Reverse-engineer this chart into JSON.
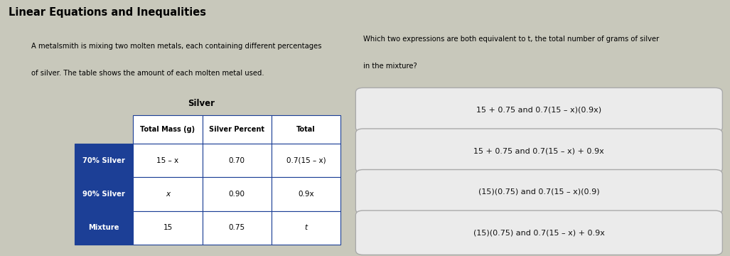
{
  "title": "Linear Equations and Inequalities",
  "left_paragraph_line1": "A metalsmith is mixing two molten metals, each containing different percentages",
  "left_paragraph_line2": "of silver. The table shows the amount of each molten metal used.",
  "right_question_line1": "Which two expressions are both equivalent to t, the total number of grams of silver",
  "right_question_line2": "in the mixture?",
  "table_title": "Silver",
  "table_headers": [
    "Total Mass (g)",
    "Silver Percent",
    "Total"
  ],
  "table_rows": [
    [
      "70% Silver",
      "15 – x",
      "0.70",
      "0.7(15 – x)"
    ],
    [
      "90% Silver",
      "x",
      "0.90",
      "0.9x"
    ],
    [
      "Mixture",
      "15",
      "0.75",
      "t"
    ]
  ],
  "row_label_bg": "#1c3f96",
  "row_label_color": "#ffffff",
  "header_bg": "#ffffff",
  "header_color": "#000000",
  "cell_bg": "#ffffff",
  "cell_color": "#000000",
  "border_color": "#1c3f96",
  "answer_choices": [
    "15 + 0.75 and 0.7(15 – x)(0.9x)",
    "15 + 0.75 and 0.7(15 – x) + 0.9x",
    "(15)(0.75) and 0.7(15 – x)(0.9)",
    "(15)(0.75) and 0.7(15 – x) + 0.9x"
  ],
  "answer_box_bg": "#ebebeb",
  "answer_box_border": "#aaaaaa",
  "background_color": "#c8c8bb",
  "title_bar_bg": "#b0b0a0",
  "title_bar_color": "#000000",
  "left_bg": "#c8c8bb",
  "right_bg": "#c8c8bb",
  "divider_color": "#888880",
  "left_strip_bg": "#c0c0b0",
  "fig_width": 10.27,
  "fig_height": 3.6,
  "dpi": 100
}
